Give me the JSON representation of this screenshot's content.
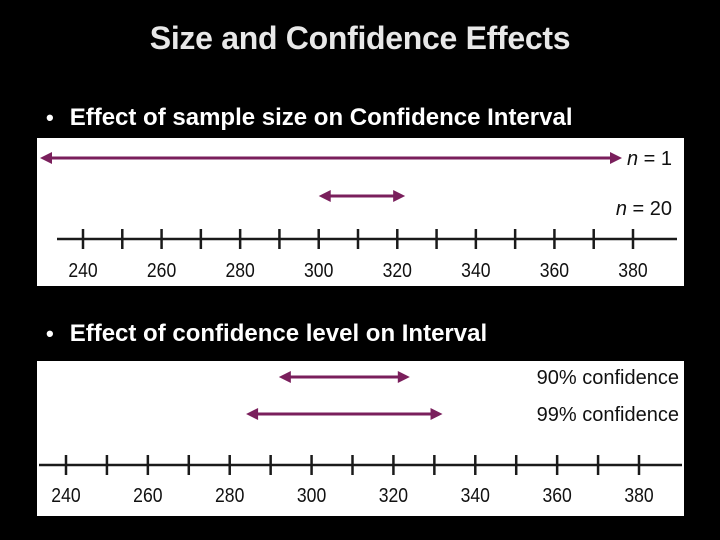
{
  "slide": {
    "title": "Size and Confidence Effects",
    "bullet_dot": "•"
  },
  "colors": {
    "background": "#000000",
    "arrow": "#7a1f5c",
    "axis": "#1a1a1a"
  },
  "diagrams": [
    {
      "bullet": "Effect of sample size on Confidence Interval",
      "axis": {
        "min": 240,
        "max": 380,
        "tick_step": 10,
        "labels": [
          "240",
          "260",
          "280",
          "300",
          "320",
          "340",
          "360",
          "380"
        ]
      },
      "intervals": [
        {
          "label_var": "n",
          "label_rest": " = 1",
          "from": null,
          "to": 380,
          "left_unbounded": true
        },
        {
          "label_var": "n",
          "label_rest": " = 20",
          "from": 300,
          "to": 322,
          "left_unbounded": false
        }
      ]
    },
    {
      "bullet": "Effect of confidence level on Interval",
      "axis": {
        "min": 240,
        "max": 380,
        "tick_step": 10,
        "labels": [
          "240",
          "260",
          "280",
          "300",
          "320",
          "340",
          "360",
          "380"
        ]
      },
      "intervals": [
        {
          "label": "90% confidence",
          "from": 292,
          "to": 324
        },
        {
          "label": "99% confidence",
          "from": 284,
          "to": 332
        }
      ]
    }
  ]
}
